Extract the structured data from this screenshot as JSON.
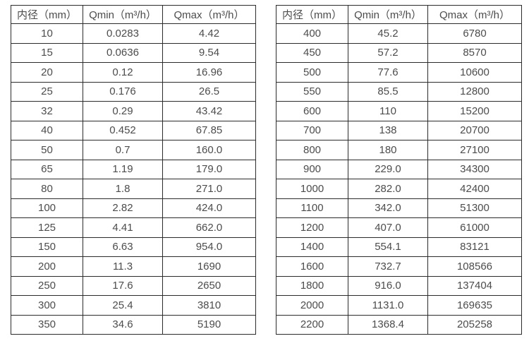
{
  "page": {
    "background_color": "#ffffff",
    "border_color": "#2b2b2b",
    "text_color": "#4c4c4c"
  },
  "tables": [
    {
      "headers": [
        "内径（mm）",
        "Qmin（m³/h）",
        "Qmax（m³/h）"
      ],
      "rows": [
        [
          "10",
          "0.0283",
          "4.42"
        ],
        [
          "15",
          "0.0636",
          "9.54"
        ],
        [
          "20",
          "0.12",
          "16.96"
        ],
        [
          "25",
          "0.176",
          "26.5"
        ],
        [
          "32",
          "0.29",
          "43.42"
        ],
        [
          "40",
          "0.452",
          "67.85"
        ],
        [
          "50",
          "0.7",
          "160.0"
        ],
        [
          "65",
          "1.19",
          "179.0"
        ],
        [
          "80",
          "1.8",
          "271.0"
        ],
        [
          "100",
          "2.82",
          "424.0"
        ],
        [
          "125",
          "4.41",
          "662.0"
        ],
        [
          "150",
          "6.63",
          "954.0"
        ],
        [
          "200",
          "11.3",
          "1690"
        ],
        [
          "250",
          "17.6",
          "2650"
        ],
        [
          "300",
          "25.4",
          "3810"
        ],
        [
          "350",
          "34.6",
          "5190"
        ]
      ]
    },
    {
      "headers": [
        "内径（mm）",
        "Qmin（m³/h）",
        "Qmax（m³/h）"
      ],
      "rows": [
        [
          "400",
          "45.2",
          "6780"
        ],
        [
          "450",
          "57.2",
          "8570"
        ],
        [
          "500",
          "77.6",
          "10600"
        ],
        [
          "550",
          "85.5",
          "12800"
        ],
        [
          "600",
          "110",
          "15200"
        ],
        [
          "700",
          "138",
          "20700"
        ],
        [
          "800",
          "180",
          "27100"
        ],
        [
          "900",
          "229.0",
          "34300"
        ],
        [
          "1000",
          "282.0",
          "42400"
        ],
        [
          "1100",
          "342.0",
          "51300"
        ],
        [
          "1200",
          "407.0",
          "61000"
        ],
        [
          "1400",
          "554.1",
          "83121"
        ],
        [
          "1600",
          "732.7",
          "108566"
        ],
        [
          "1800",
          "916.0",
          "137404"
        ],
        [
          "2000",
          "1131.0",
          "169635"
        ],
        [
          "2200",
          "1368.4",
          "205258"
        ]
      ]
    }
  ]
}
